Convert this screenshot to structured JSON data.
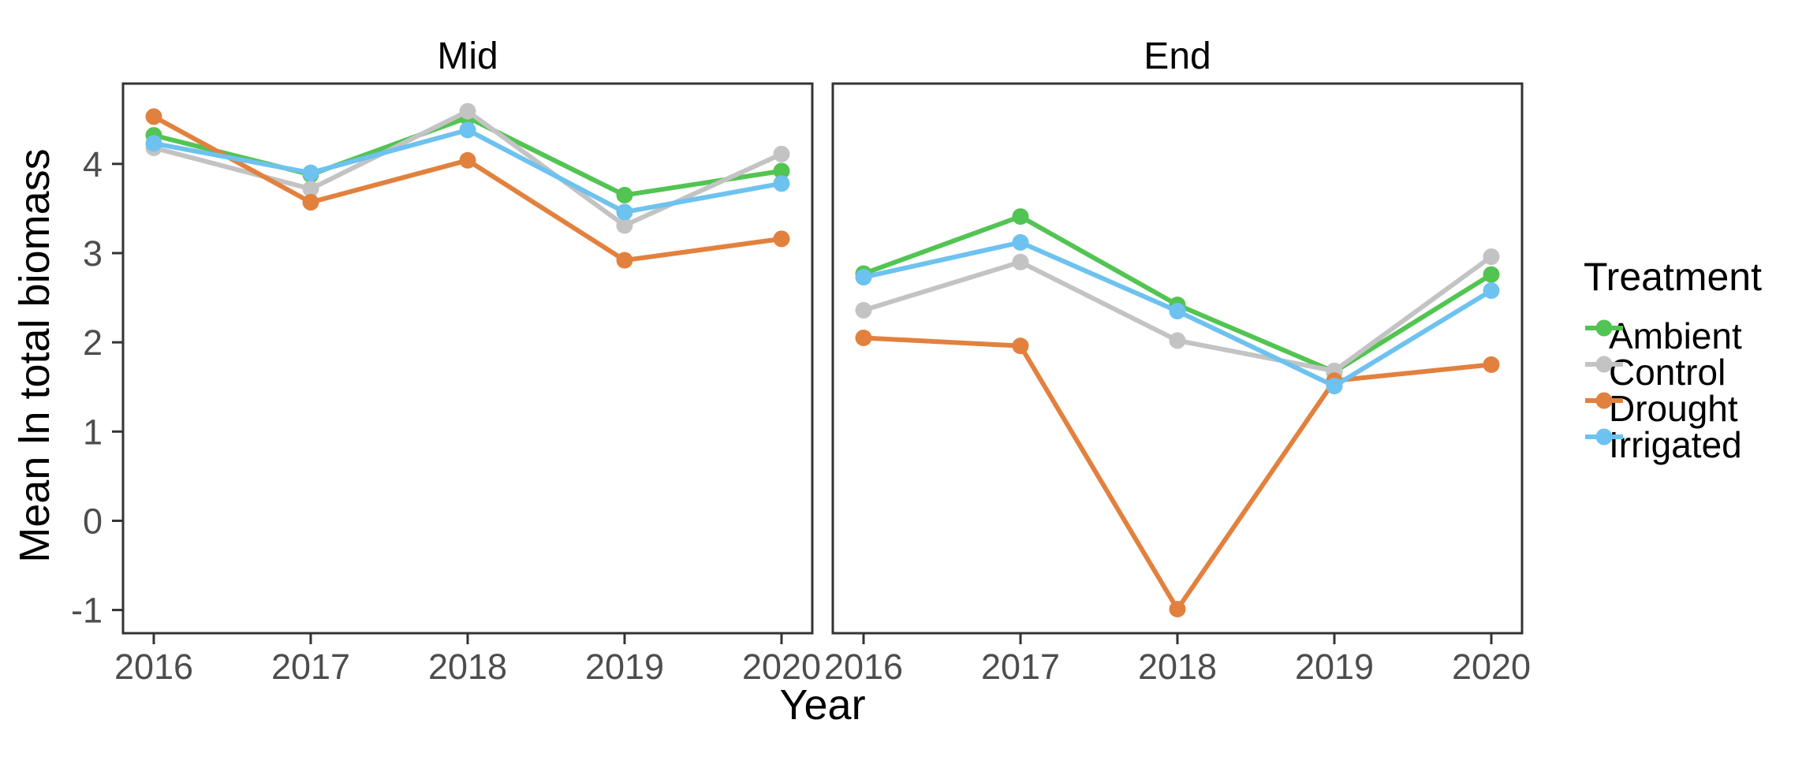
{
  "figure": {
    "background": "#FFFFFF"
  },
  "chart_data": {
    "type": "line",
    "title": "",
    "xlabel": "Year",
    "ylabel": "Mean ln total biomass",
    "x": [
      2016,
      2017,
      2018,
      2019,
      2020
    ],
    "yticks": [
      4,
      3,
      2,
      1,
      0,
      -1
    ],
    "ylim": [
      -1.26,
      4.9
    ],
    "grid": "off",
    "legend_position": "right",
    "facets": [
      {
        "label": "Mid",
        "series": [
          {
            "name": "Ambient",
            "values": [
              4.32,
              3.88,
              4.52,
              3.65,
              3.92
            ]
          },
          {
            "name": "Control",
            "values": [
              4.18,
              3.72,
              4.59,
              3.31,
              4.11
            ]
          },
          {
            "name": "Drought",
            "values": [
              4.53,
              3.57,
              4.04,
              2.92,
              3.16
            ]
          },
          {
            "name": "Irrigated",
            "values": [
              4.23,
              3.9,
              4.38,
              3.46,
              3.78
            ]
          }
        ]
      },
      {
        "label": "End",
        "series": [
          {
            "name": "Ambient",
            "values": [
              2.77,
              3.41,
              2.42,
              1.67,
              2.76
            ]
          },
          {
            "name": "Control",
            "values": [
              2.36,
              2.9,
              2.02,
              1.68,
              2.96
            ]
          },
          {
            "name": "Drought",
            "values": [
              2.05,
              1.96,
              -0.99,
              1.57,
              1.75
            ]
          },
          {
            "name": "Irrigated",
            "values": [
              2.73,
              3.12,
              2.35,
              1.51,
              2.58
            ]
          }
        ]
      }
    ],
    "legend": {
      "title": "Treatment",
      "entries": [
        {
          "label": "Ambient",
          "color": "#52C452"
        },
        {
          "label": "Control",
          "color": "#C3C3C3"
        },
        {
          "label": "Drought",
          "color": "#E2813E"
        },
        {
          "label": "Irrigated",
          "color": "#6DC2EF"
        }
      ]
    },
    "style": {
      "series_colors": {
        "Ambient": "#52C452",
        "Control": "#C3C3C3",
        "Drought": "#E2813E",
        "Irrigated": "#6DC2EF"
      },
      "axis_color": "#333333",
      "tick_label_color": "#4D4D4D",
      "text_color": "#000000"
    }
  }
}
